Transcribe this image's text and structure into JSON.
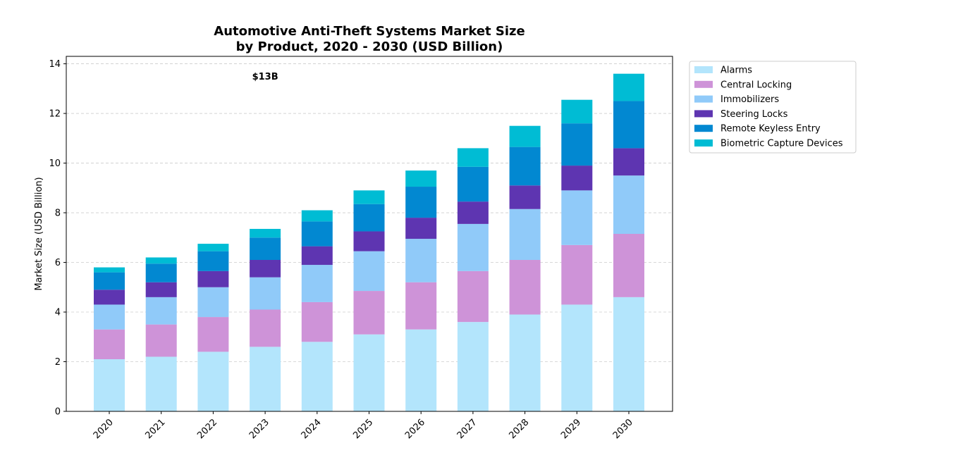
{
  "chart_data": {
    "type": "bar",
    "stacked": true,
    "title_line1": "Automotive Anti-Theft Systems Market Size",
    "title_line2": "by Product, 2020 - 2030 (USD Billion)",
    "xlabel": "",
    "ylabel": "Market Size (USD Billion)",
    "ylim": [
      0,
      14.3
    ],
    "yticks": [
      0,
      2,
      4,
      6,
      8,
      10,
      12,
      14
    ],
    "grid": "horizontal dashed",
    "legend_position": "outside top-right",
    "annotation": {
      "text": "$13B",
      "category": "2023",
      "y": 13.5
    },
    "categories": [
      "2020",
      "2021",
      "2022",
      "2023",
      "2024",
      "2025",
      "2026",
      "2027",
      "2028",
      "2029",
      "2030"
    ],
    "series": [
      {
        "name": "Alarms",
        "color": "#b3e5fc",
        "values": [
          2.1,
          2.2,
          2.4,
          2.6,
          2.8,
          3.1,
          3.3,
          3.6,
          3.9,
          4.3,
          4.6
        ]
      },
      {
        "name": "Central Locking",
        "color": "#ce93d8",
        "values": [
          1.2,
          1.3,
          1.4,
          1.5,
          1.6,
          1.75,
          1.9,
          2.05,
          2.2,
          2.4,
          2.55
        ]
      },
      {
        "name": "Immobilizers",
        "color": "#90caf9",
        "values": [
          1.0,
          1.1,
          1.2,
          1.3,
          1.5,
          1.6,
          1.75,
          1.9,
          2.05,
          2.2,
          2.35
        ]
      },
      {
        "name": "Steering Locks",
        "color": "#5e35b1",
        "values": [
          0.6,
          0.6,
          0.65,
          0.7,
          0.75,
          0.8,
          0.85,
          0.9,
          0.95,
          1.0,
          1.1
        ]
      },
      {
        "name": "Remote Keyless Entry",
        "color": "#0288d1",
        "values": [
          0.7,
          0.75,
          0.8,
          0.9,
          1.0,
          1.1,
          1.25,
          1.4,
          1.55,
          1.7,
          1.9
        ]
      },
      {
        "name": "Biometric Capture Devices",
        "color": "#00bcd4",
        "values": [
          0.2,
          0.25,
          0.3,
          0.35,
          0.45,
          0.55,
          0.65,
          0.75,
          0.85,
          0.95,
          1.1
        ]
      }
    ]
  }
}
